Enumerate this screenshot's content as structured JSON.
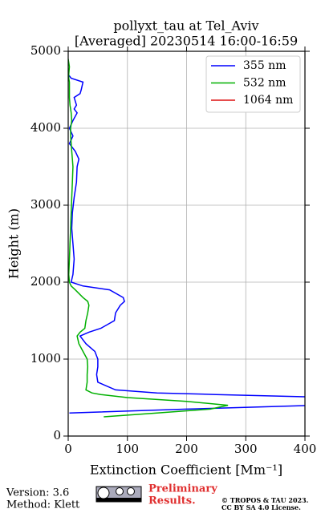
{
  "chart_data": {
    "type": "profile",
    "title": "pollyxt_tau at Tel_Aviv",
    "subtitle": "[Averaged] 20230514 16:00-16:59",
    "xlabel": "Extinction Coefficient [Mm⁻¹]",
    "ylabel": "Height (m)",
    "xlim": [
      0,
      400
    ],
    "xticks": [
      0,
      100,
      200,
      300,
      400
    ],
    "ylim": [
      0,
      5000
    ],
    "yticks": [
      0,
      1000,
      2000,
      3000,
      4000,
      5000
    ],
    "grid": true,
    "legend": "upper right",
    "y": [
      200,
      250,
      300,
      350,
      400,
      450,
      500,
      540,
      560,
      600,
      700,
      800,
      900,
      1000,
      1100,
      1200,
      1300,
      1350,
      1400,
      1500,
      1600,
      1700,
      1750,
      1800,
      1900,
      1950,
      2000,
      2100,
      2300,
      2500,
      2700,
      2900,
      3100,
      3300,
      3500,
      3600,
      3700,
      3800,
      3900,
      4000,
      4100,
      4200,
      4250,
      4300,
      4400,
      4450,
      4500,
      4600,
      4650,
      4700,
      4800,
      4900,
      5000
    ],
    "series": [
      {
        "name": "355 nm",
        "color": "#0000ff",
        "values": [
          null,
          null,
          2,
          200,
          420,
          500,
          450,
          250,
          150,
          80,
          50,
          48,
          50,
          50,
          45,
          30,
          20,
          35,
          55,
          78,
          80,
          88,
          95,
          93,
          70,
          25,
          5,
          8,
          10,
          8,
          6,
          7,
          10,
          14,
          15,
          18,
          12,
          2,
          8,
          2,
          8,
          15,
          10,
          14,
          10,
          20,
          22,
          25,
          5,
          0,
          null,
          null,
          null
        ]
      },
      {
        "name": "532 nm",
        "color": "#00b000",
        "values": [
          null,
          60,
          150,
          240,
          270,
          200,
          100,
          55,
          40,
          30,
          32,
          32,
          33,
          32,
          25,
          18,
          15,
          20,
          28,
          30,
          33,
          35,
          33,
          25,
          12,
          5,
          2,
          1,
          2,
          3,
          4,
          5,
          6,
          7,
          8,
          7,
          6,
          5,
          4,
          4,
          6,
          5,
          4,
          3,
          2,
          2,
          2,
          2,
          1,
          1,
          2,
          0,
          null
        ]
      },
      {
        "name": "1064 nm",
        "color": "#dd1111",
        "values": [
          null,
          null,
          null,
          null,
          null,
          null,
          null,
          null,
          null,
          null,
          null,
          null,
          null,
          null,
          null,
          null,
          null,
          null,
          null,
          null,
          null,
          null,
          null,
          null,
          null,
          null,
          null,
          null,
          null,
          null,
          null,
          null,
          null,
          null,
          null,
          null,
          null,
          null,
          null,
          null,
          null,
          null,
          null,
          null,
          null,
          null,
          null,
          null,
          null,
          null,
          null,
          null,
          null
        ]
      }
    ]
  },
  "footer": {
    "version": "Version: 3.6",
    "method": "Method: Klett",
    "preliminary": [
      "Preliminary",
      "Results."
    ],
    "copyright": [
      "© TROPOS & TAU 2023.",
      "CC BY SA 4.0 License."
    ]
  }
}
